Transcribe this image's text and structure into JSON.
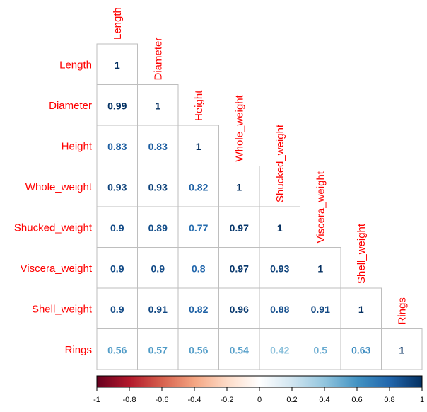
{
  "chart_data": {
    "type": "heatmap",
    "variables": [
      "Length",
      "Diameter",
      "Height",
      "Whole_weight",
      "Shucked_weight",
      "Viscera_weight",
      "Shell_weight",
      "Rings"
    ],
    "matrix": [
      [
        "1"
      ],
      [
        "0.99",
        "1"
      ],
      [
        "0.83",
        "0.83",
        "1"
      ],
      [
        "0.93",
        "0.93",
        "0.82",
        "1"
      ],
      [
        "0.9",
        "0.89",
        "0.77",
        "0.97",
        "1"
      ],
      [
        "0.9",
        "0.9",
        "0.8",
        "0.97",
        "0.93",
        "1"
      ],
      [
        "0.9",
        "0.91",
        "0.82",
        "0.96",
        "0.88",
        "0.91",
        "1"
      ],
      [
        "0.56",
        "0.57",
        "0.56",
        "0.54",
        "0.42",
        "0.5",
        "0.63",
        "1"
      ]
    ],
    "colorbar": {
      "range": [
        -1,
        1
      ],
      "ticks": [
        "-1",
        "-0.8",
        "-0.6",
        "-0.4",
        "-0.2",
        "0",
        "0.2",
        "0.4",
        "0.6",
        "0.8",
        "1"
      ],
      "palette": [
        "#67001f",
        "#b2182b",
        "#d6604d",
        "#f4a582",
        "#fddbc7",
        "#ffffff",
        "#d1e5f0",
        "#92c5de",
        "#4393c3",
        "#2166ac",
        "#053061"
      ]
    },
    "label_color": "#ff0000",
    "grid_color": "#bebebe",
    "layout": "lower-triangle"
  }
}
